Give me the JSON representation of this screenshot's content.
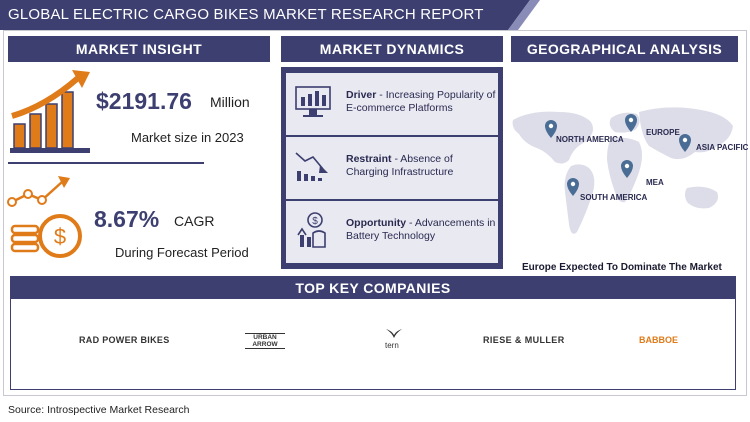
{
  "title": "GLOBAL ELECTRIC CARGO BIKES MARKET RESEARCH REPORT",
  "sections": {
    "insight": "MARKET INSIGHT",
    "dynamics": "MARKET DYNAMICS",
    "geo": "GEOGRAPHICAL ANALYSIS",
    "companies": "TOP KEY COMPANIES"
  },
  "insight": {
    "market_value": "$2191.76",
    "market_unit": "Million",
    "market_label": "Market size in 2023",
    "cagr_value": "8.67%",
    "cagr_unit": "CAGR",
    "cagr_label": "During Forecast Period"
  },
  "dynamics": [
    {
      "label": "Driver",
      "text": "- Increasing Popularity of E-commerce Platforms",
      "icon": "chart-monitor-icon"
    },
    {
      "label": "Restraint",
      "text": "- Absence of Charging Infrastructure",
      "icon": "declining-chart-icon"
    },
    {
      "label": "Opportunity",
      "text": "- Advancements in Battery Technology",
      "icon": "growth-hand-icon"
    }
  ],
  "regions": [
    "NORTH AMERICA",
    "EUROPE",
    "ASIA PACIFIC",
    "MEA",
    "SOUTH AMERICA"
  ],
  "geo_caption": "Europe  Expected To Dominate The Market",
  "companies": [
    "RAD POWER BIKES",
    "URBAN ARROW",
    "tern",
    "RIESE & MULLER",
    "BABBOE"
  ],
  "source": "Source: Introspective Market Research",
  "colors": {
    "navy": "#3d3f70",
    "orange": "#e07b1a"
  }
}
